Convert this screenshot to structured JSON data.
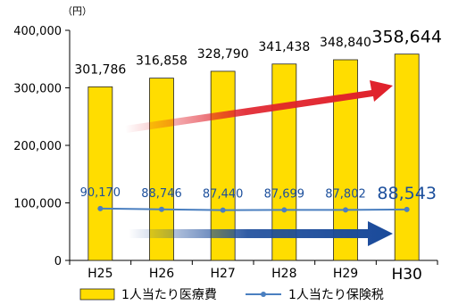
{
  "chart_data": {
    "type": "bar",
    "unit": "（円）",
    "categories": [
      "H25",
      "H26",
      "H27",
      "H28",
      "H29",
      "H30"
    ],
    "series": [
      {
        "name": "1人当たり医療費",
        "kind": "bar",
        "color": "#ffdd00",
        "values": [
          301786,
          316858,
          328790,
          341438,
          348840,
          358644
        ],
        "labels": [
          "301,786",
          "316,858",
          "328,790",
          "341,438",
          "348,840",
          "358,644"
        ]
      },
      {
        "name": "1人当たり保険税",
        "kind": "line",
        "color": "#4a7fc0",
        "values": [
          90170,
          88746,
          87440,
          87699,
          87802,
          88543
        ],
        "labels": [
          "90,170",
          "88,746",
          "87,440",
          "87,699",
          "87,802",
          "88,543"
        ]
      }
    ],
    "ylim": [
      0,
      400000
    ],
    "yticks": [
      0,
      100000,
      200000,
      300000,
      400000
    ],
    "ytick_labels": [
      "0",
      "100,000",
      "200,000",
      "300,000",
      "400,000"
    ],
    "grid": false,
    "legend": "bottom",
    "annotations": [
      {
        "type": "arrow",
        "color": "#e0202a",
        "meaning": "upward trend"
      },
      {
        "type": "arrow",
        "color": "#1a4a9a",
        "meaning": "flat trend"
      }
    ]
  }
}
